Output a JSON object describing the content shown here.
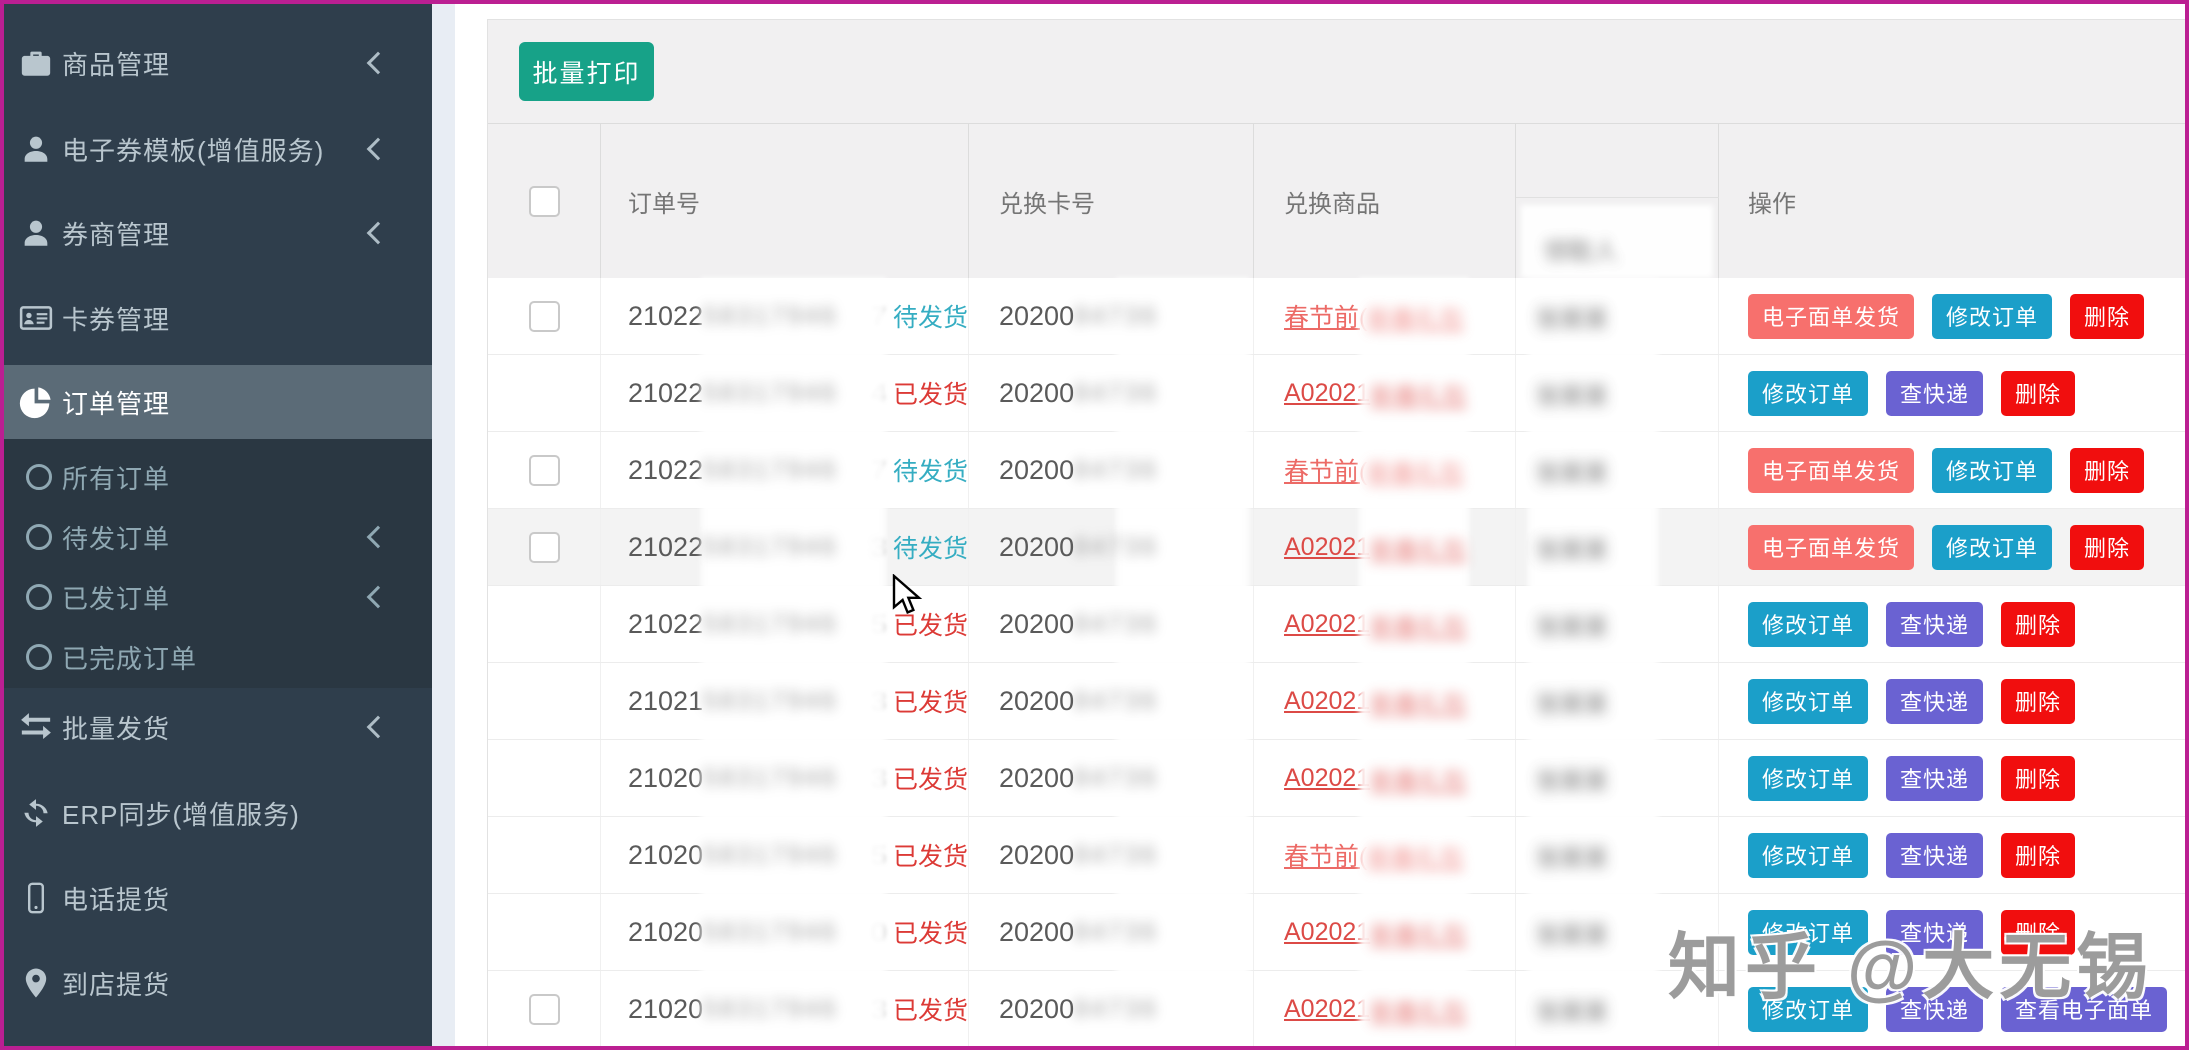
{
  "window": {
    "watermark": "知乎 @大无锡"
  },
  "sidebar": {
    "items": [
      {
        "id": "goods",
        "label": "商品管理",
        "icon": "briefcase-icon",
        "chevron": true,
        "active": false
      },
      {
        "id": "evoucher-template",
        "label": "电子券模板(增值服务)",
        "icon": "user-icon",
        "chevron": true,
        "active": false
      },
      {
        "id": "voucher-merchant",
        "label": "券商管理",
        "icon": "user-icon",
        "chevron": true,
        "active": false
      },
      {
        "id": "card-voucher",
        "label": "卡券管理",
        "icon": "id-card-icon",
        "chevron": false,
        "active": false
      },
      {
        "id": "order",
        "label": "订单管理",
        "icon": "pie-chart-icon",
        "chevron": false,
        "active": true
      },
      {
        "id": "batch-ship",
        "label": "批量发货",
        "icon": "exchange-icon",
        "chevron": true,
        "active": false
      },
      {
        "id": "erp-sync",
        "label": "ERP同步(增值服务)",
        "icon": "refresh-icon",
        "chevron": false,
        "active": false
      },
      {
        "id": "phone-pickup",
        "label": "电话提货",
        "icon": "mobile-icon",
        "chevron": false,
        "active": false
      },
      {
        "id": "store-pickup",
        "label": "到店提货",
        "icon": "map-marker-icon",
        "chevron": false,
        "active": false
      }
    ],
    "order_submenu": [
      {
        "id": "all-orders",
        "label": "所有订单",
        "chevron": false
      },
      {
        "id": "pending-orders",
        "label": "待发订单",
        "chevron": true
      },
      {
        "id": "shipped-orders",
        "label": "已发订单",
        "chevron": true
      },
      {
        "id": "completed-orders",
        "label": "已完成订单",
        "chevron": false
      }
    ]
  },
  "toolbar": {
    "batch_print_label": "批量打印",
    "batch_print_color": "#17a288"
  },
  "table": {
    "headers": {
      "order_no": "订单号",
      "card_no": "兑换卡号",
      "product": "兑换商品",
      "receiver_blurred": "领取人",
      "operation": "操作"
    },
    "statuses": {
      "pending": {
        "label": "待发货",
        "color": "#35adc2"
      },
      "shipped": {
        "label": "已发货",
        "color": "#dc3a36"
      }
    },
    "actions": {
      "eface": {
        "label": "电子面单发货",
        "color": "#f7706d"
      },
      "modify": {
        "label": "修改订单",
        "color": "#1b9fc9"
      },
      "express": {
        "label": "查快递",
        "color": "#6a62d2"
      },
      "view_eface": {
        "label": "查看电子面单",
        "color": "#6a62d2"
      },
      "delete": {
        "label": "删除",
        "color": "#f10e0e"
      }
    },
    "product_link_colors": {
      "cny": "#ec6a66",
      "a_code": "#dc4a46"
    },
    "blur_placeholders": {
      "order": "58317946",
      "card": "84736",
      "product": "新春礼包",
      "name": "张某某"
    },
    "rows": [
      {
        "has_checkbox": true,
        "order_prefix": "21022",
        "order_tail": "7",
        "status": "pending",
        "card_prefix": "20200",
        "product_prefix": "春节前(",
        "product_kind": "cny",
        "actions": [
          "eface",
          "modify",
          "delete"
        ],
        "hover": false
      },
      {
        "has_checkbox": false,
        "order_prefix": "21022",
        "order_tail": "4",
        "status": "shipped",
        "card_prefix": "20200",
        "product_prefix": "A02021",
        "product_kind": "a_code",
        "actions": [
          "modify",
          "express",
          "delete"
        ],
        "hover": false
      },
      {
        "has_checkbox": true,
        "order_prefix": "21022",
        "order_tail": "7",
        "status": "pending",
        "card_prefix": "20200",
        "product_prefix": "春节前(",
        "product_kind": "cny",
        "actions": [
          "eface",
          "modify",
          "delete"
        ],
        "hover": false
      },
      {
        "has_checkbox": true,
        "order_prefix": "21022",
        "order_tail": "3",
        "status": "pending",
        "card_prefix": "20200",
        "product_prefix": "A02021",
        "product_kind": "a_code",
        "actions": [
          "eface",
          "modify",
          "delete"
        ],
        "hover": true
      },
      {
        "has_checkbox": false,
        "order_prefix": "21022",
        "order_tail": "5",
        "status": "shipped",
        "card_prefix": "20200",
        "product_prefix": "A02021",
        "product_kind": "a_code",
        "actions": [
          "modify",
          "express",
          "delete"
        ],
        "hover": false
      },
      {
        "has_checkbox": false,
        "order_prefix": "21021",
        "order_tail": "3",
        "status": "shipped",
        "card_prefix": "20200",
        "product_prefix": "A02021",
        "product_kind": "a_code",
        "actions": [
          "modify",
          "express",
          "delete"
        ],
        "hover": false
      },
      {
        "has_checkbox": false,
        "order_prefix": "21020",
        "order_tail": "3",
        "status": "shipped",
        "card_prefix": "20200",
        "product_prefix": "A02021",
        "product_kind": "a_code",
        "actions": [
          "modify",
          "express",
          "delete"
        ],
        "hover": false
      },
      {
        "has_checkbox": false,
        "order_prefix": "21020",
        "order_tail": "5",
        "status": "shipped",
        "card_prefix": "20200",
        "product_prefix": "春节前(",
        "product_kind": "cny",
        "actions": [
          "modify",
          "express",
          "delete"
        ],
        "hover": false
      },
      {
        "has_checkbox": false,
        "order_prefix": "21020",
        "order_tail": "0",
        "status": "shipped",
        "card_prefix": "20200",
        "product_prefix": "A02021",
        "product_kind": "a_code",
        "actions": [
          "modify",
          "express",
          "delete"
        ],
        "hover": false
      },
      {
        "has_checkbox": true,
        "order_prefix": "21020",
        "order_tail": "3",
        "status": "shipped",
        "card_prefix": "20200",
        "product_prefix": "A02021",
        "product_kind": "a_code",
        "actions": [
          "modify",
          "express",
          "view_eface",
          "delete"
        ],
        "hover": false
      }
    ]
  }
}
